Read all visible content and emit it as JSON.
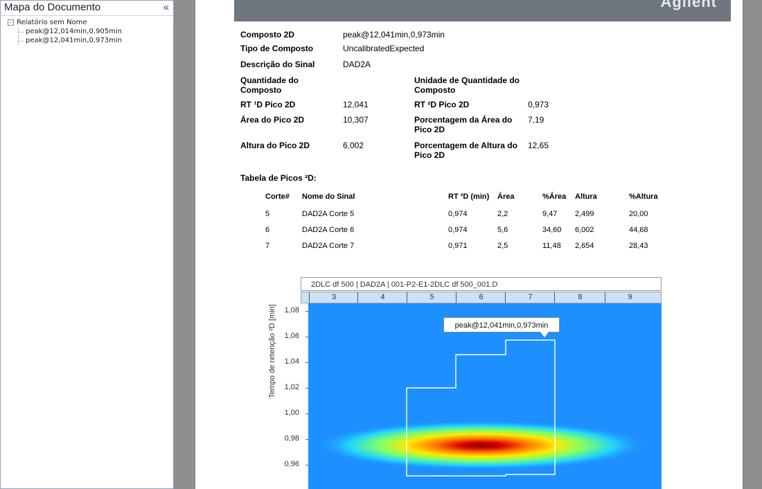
{
  "sidebar": {
    "title": "Mapa do Documento",
    "collapse_glyph": "«",
    "tree": {
      "root_label": "Relatório sem Nome",
      "expander": "-",
      "children": [
        "peak@12,014min,0,905min",
        "peak@12,041min,0,973min"
      ]
    }
  },
  "banner": {
    "logo": "Agilent"
  },
  "details": {
    "composto_label": "Composto 2D",
    "composto_value": "peak@12,041min,0,973min",
    "tipo_label": "Tipo de Composto",
    "tipo_value": "UncalibratedExpected",
    "sinal_label": "Descrição do Sinal",
    "sinal_value": "DAD2A",
    "quantidade_label": "Quantidade do Composto",
    "unidade_label": "Unidade de Quantidade do Composto",
    "rt1_label": "RT ¹D Pico 2D",
    "rt1_value": "12,041",
    "rt2_label": "RT ²D Pico 2D",
    "rt2_value": "0,973",
    "area_label": "Área do Pico 2D",
    "area_value": "10,307",
    "area_pct_label": "Porcentagem da Área do Pico 2D",
    "area_pct_value": "7,19",
    "altura_label": "Altura do Pico 2D",
    "altura_value": "6,002",
    "altura_pct_label": "Porcentagem de Altura do Pico 2D",
    "altura_pct_value": "12,65"
  },
  "table": {
    "title": "Tabela de Picos ²D:",
    "headers": [
      "Corte#",
      "Nome do Sinal",
      "RT ²D (min)",
      "Área",
      "%Área",
      "Altura",
      "%Altura"
    ],
    "rows": [
      [
        "5",
        "DAD2A Corte 5",
        "0,974",
        "2,2",
        "9,47",
        "2,499",
        "20,00"
      ],
      [
        "6",
        "DAD2A Corte 6",
        "0,974",
        "5,6",
        "34,60",
        "6,002",
        "44,68"
      ],
      [
        "7",
        "DAD2A Corte 7",
        "0,971",
        "2,5",
        "11,48",
        "2,654",
        "28,43"
      ]
    ]
  },
  "chart": {
    "title": "2DLC df 500 | DAD2A | 001-P2-E1-2DLC df 500_001.D",
    "ruler_ticks": [
      "3",
      "4",
      "5",
      "6",
      "7",
      "8",
      "9"
    ],
    "y_ticks": [
      "1,08",
      "1,06",
      "1,04",
      "1,02",
      "1,00",
      "0,98",
      "0,96"
    ],
    "y_label": "Tempo de retenção ²D [min]",
    "peak_label": "peak@12,041min,0,973min",
    "colors": {
      "background": "#1e8fff",
      "hot": "#c00000",
      "boundary": "#ffffff"
    }
  }
}
